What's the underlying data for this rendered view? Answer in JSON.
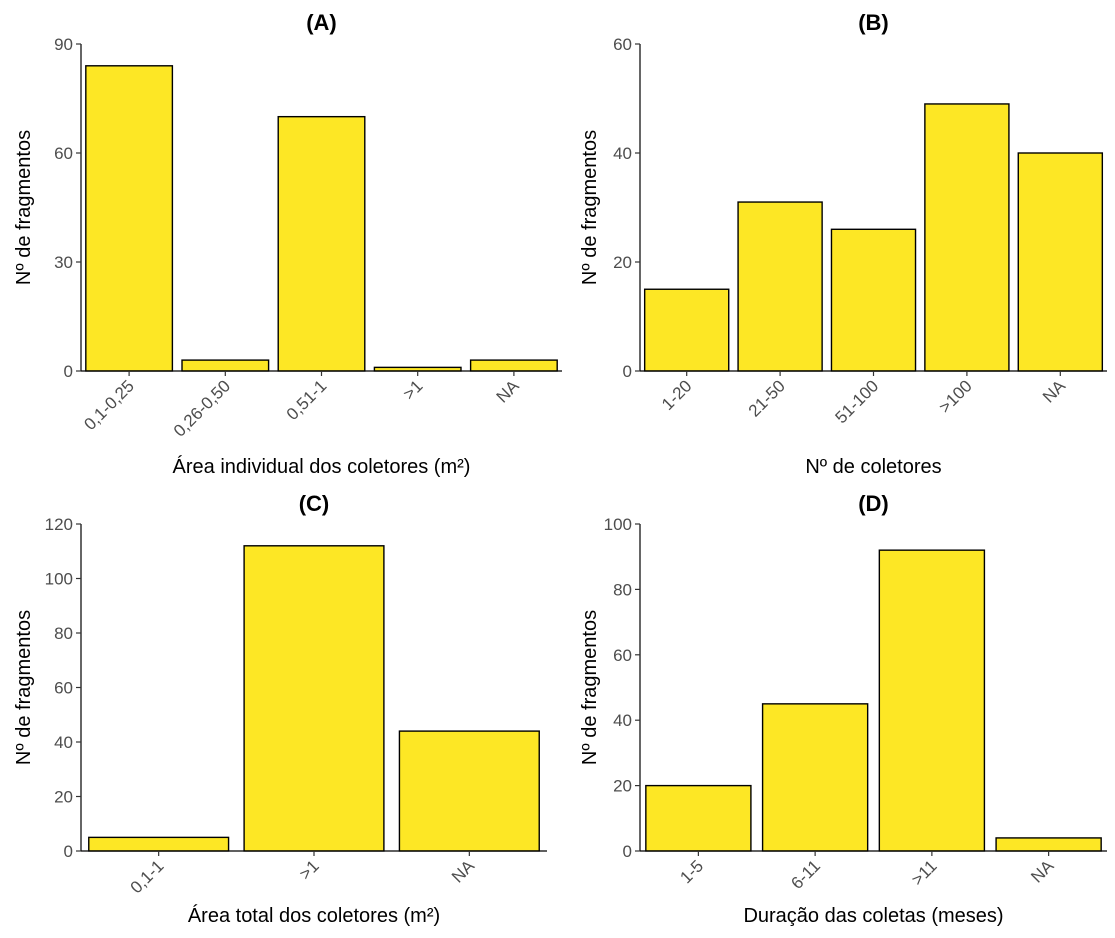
{
  "bar_color": "#fde725",
  "chart_data": [
    {
      "type": "bar",
      "title": "(A)",
      "xlabel": "Área individual dos coletores (m²)",
      "ylabel": "Nº de fragmentos",
      "categories": [
        "0,1-0,25",
        "0,26-0,50",
        "0,51-1",
        ">1",
        "NA"
      ],
      "values": [
        84,
        3,
        70,
        1,
        3
      ],
      "ylim": [
        0,
        90
      ],
      "yticks": [
        0,
        30,
        60,
        90
      ],
      "grid": false
    },
    {
      "type": "bar",
      "title": "(B)",
      "xlabel": "Nº de coletores",
      "ylabel": "Nº de fragmentos",
      "categories": [
        "1-20",
        "21-50",
        "51-100",
        ">100",
        "NA"
      ],
      "values": [
        15,
        31,
        26,
        49,
        40
      ],
      "ylim": [
        0,
        60
      ],
      "yticks": [
        0,
        20,
        40,
        60
      ],
      "grid": false
    },
    {
      "type": "bar",
      "title": "(C)",
      "xlabel": "Área total dos coletores (m²)",
      "ylabel": "Nº de fragmentos",
      "categories": [
        "0,1-1",
        ">1",
        "NA"
      ],
      "values": [
        5,
        112,
        44
      ],
      "ylim": [
        0,
        120
      ],
      "yticks": [
        0,
        20,
        40,
        60,
        80,
        100,
        120
      ],
      "grid": false
    },
    {
      "type": "bar",
      "title": "(D)",
      "xlabel": "Duração das coletas (meses)",
      "ylabel": "Nº de fragmentos",
      "categories": [
        "1-5",
        "6-11",
        ">11",
        "NA"
      ],
      "values": [
        20,
        45,
        92,
        4
      ],
      "ylim": [
        0,
        100
      ],
      "yticks": [
        0,
        20,
        40,
        60,
        80,
        100
      ],
      "grid": false
    }
  ]
}
